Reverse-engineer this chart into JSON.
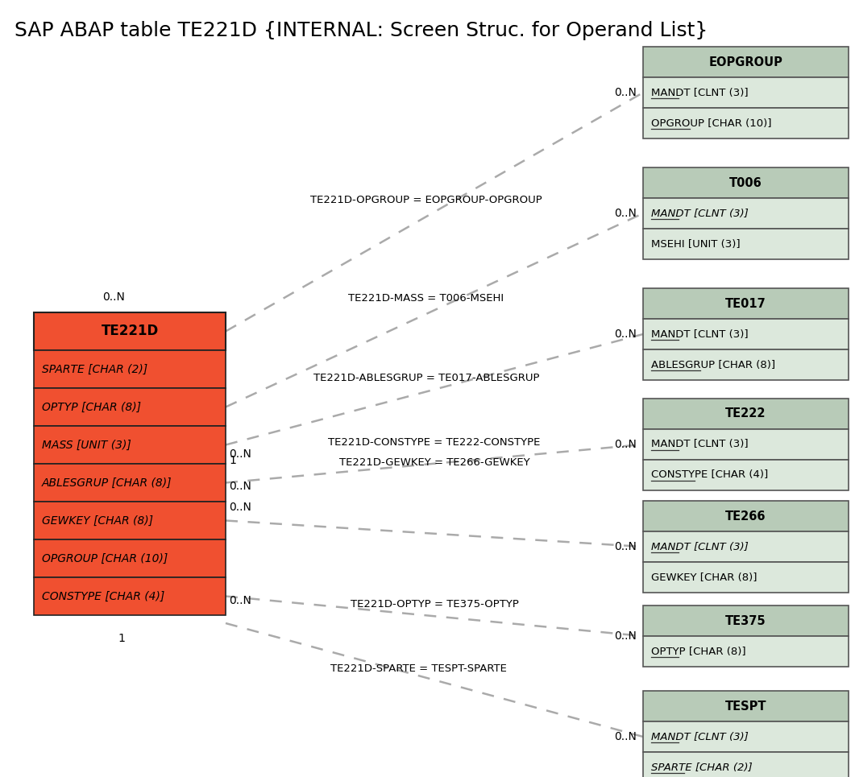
{
  "title": "SAP ABAP table TE221D {INTERNAL: Screen Struc. for Operand List}",
  "title_fontsize": 18,
  "background_color": "#ffffff",
  "main_table": {
    "name": "TE221D",
    "header_color": "#f05030",
    "row_color": "#f05030",
    "fields": [
      "SPARTE [CHAR (2)]",
      "OPTYP [CHAR (8)]",
      "MASS [UNIT (3)]",
      "ABLESGRUP [CHAR (8)]",
      "GEWKEY [CHAR (8)]",
      "OPGROUP [CHAR (10)]",
      "CONSTYPE [CHAR (4)]"
    ]
  },
  "right_tables": [
    {
      "name": "EOPGROUP",
      "header_color": "#b8cbb8",
      "row_color": "#dce8dc",
      "fields": [
        "MANDT [CLNT (3)]",
        "OPGROUP [CHAR (10)]"
      ],
      "underline_fields": [
        0,
        1
      ],
      "italic_fields": []
    },
    {
      "name": "T006",
      "header_color": "#b8cbb8",
      "row_color": "#dce8dc",
      "fields": [
        "MANDT [CLNT (3)]",
        "MSEHI [UNIT (3)]"
      ],
      "underline_fields": [
        0
      ],
      "italic_fields": [
        0
      ]
    },
    {
      "name": "TE017",
      "header_color": "#b8cbb8",
      "row_color": "#dce8dc",
      "fields": [
        "MANDT [CLNT (3)]",
        "ABLESGRUP [CHAR (8)]"
      ],
      "underline_fields": [
        0,
        1
      ],
      "italic_fields": []
    },
    {
      "name": "TE222",
      "header_color": "#b8cbb8",
      "row_color": "#dce8dc",
      "fields": [
        "MANDT [CLNT (3)]",
        "CONSTYPE [CHAR (4)]"
      ],
      "underline_fields": [
        0,
        1
      ],
      "italic_fields": []
    },
    {
      "name": "TE266",
      "header_color": "#b8cbb8",
      "row_color": "#dce8dc",
      "fields": [
        "MANDT [CLNT (3)]",
        "GEWKEY [CHAR (8)]"
      ],
      "underline_fields": [
        0
      ],
      "italic_fields": [
        0
      ]
    },
    {
      "name": "TE375",
      "header_color": "#b8cbb8",
      "row_color": "#dce8dc",
      "fields": [
        "OPTYP [CHAR (8)]"
      ],
      "underline_fields": [
        0
      ],
      "italic_fields": []
    },
    {
      "name": "TESPT",
      "header_color": "#b8cbb8",
      "row_color": "#dce8dc",
      "fields": [
        "MANDT [CLNT (3)]",
        "SPARTE [CHAR (2)]"
      ],
      "underline_fields": [
        0,
        1
      ],
      "italic_fields": [
        0,
        1
      ]
    }
  ],
  "line_color": "#aaaaaa",
  "line_width": 1.8
}
